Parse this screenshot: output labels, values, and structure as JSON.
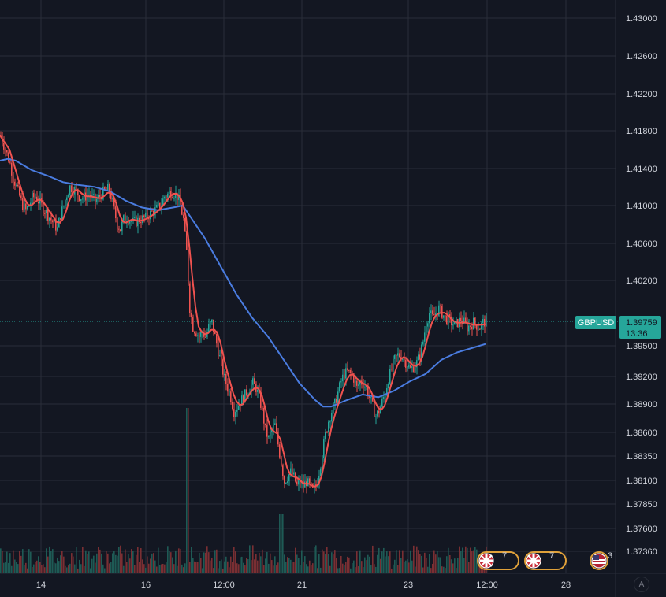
{
  "symbol": "GBPUSD",
  "current_price": "1.39759",
  "countdown": "13:36",
  "auto_scale_label": "A",
  "colors": {
    "background": "#131722",
    "grid": "#2a2e39",
    "bull": "#26a69a",
    "bear": "#ef5350",
    "ma_fast": "#f0524f",
    "ma_slow": "#4a7ce0",
    "price_badge": "#26a69a"
  },
  "events": [
    {
      "flag": "uk-flag-icon",
      "count": "7"
    },
    {
      "flag": "uk-flag-icon",
      "count": "7"
    },
    {
      "flag": "us-flag-icon",
      "count": "3"
    }
  ],
  "chart_data": {
    "type": "candlestick",
    "y_ticks": [
      "1.43000",
      "1.42600",
      "1.42200",
      "1.41800",
      "1.41400",
      "1.41000",
      "1.40600",
      "1.40200",
      "1.39500",
      "1.39200",
      "1.38900",
      "1.38600",
      "1.38350",
      "1.38100",
      "1.37850",
      "1.37600",
      "1.37360"
    ],
    "x_ticks": [
      "14",
      "16",
      "12:00",
      "21",
      "23",
      "12:00",
      "28"
    ],
    "close_series": [
      [
        0,
        1.4175
      ],
      [
        4,
        1.4165
      ],
      [
        8,
        1.4155
      ],
      [
        12,
        1.4145
      ],
      [
        16,
        1.413
      ],
      [
        20,
        1.412
      ],
      [
        24,
        1.411
      ],
      [
        28,
        1.41
      ],
      [
        32,
        1.4095
      ],
      [
        36,
        1.41
      ],
      [
        40,
        1.4108
      ],
      [
        44,
        1.411
      ],
      [
        48,
        1.4105
      ],
      [
        52,
        1.41
      ],
      [
        56,
        1.4095
      ],
      [
        60,
        1.409
      ],
      [
        64,
        1.4085
      ],
      [
        68,
        1.408
      ],
      [
        72,
        1.4075
      ],
      [
        76,
        1.409
      ],
      [
        80,
        1.41
      ],
      [
        84,
        1.4112
      ],
      [
        88,
        1.412
      ],
      [
        92,
        1.4118
      ],
      [
        96,
        1.4115
      ],
      [
        100,
        1.411
      ],
      [
        104,
        1.4108
      ],
      [
        108,
        1.411
      ],
      [
        112,
        1.4112
      ],
      [
        116,
        1.4108
      ],
      [
        120,
        1.4105
      ],
      [
        124,
        1.4108
      ],
      [
        128,
        1.4112
      ],
      [
        132,
        1.4115
      ],
      [
        136,
        1.4118
      ],
      [
        140,
        1.411
      ],
      [
        144,
        1.4095
      ],
      [
        148,
        1.408
      ],
      [
        152,
        1.4075
      ],
      [
        156,
        1.4085
      ],
      [
        160,
        1.4088
      ],
      [
        164,
        1.4085
      ],
      [
        168,
        1.4082
      ],
      [
        172,
        1.4083
      ],
      [
        176,
        1.4085
      ],
      [
        180,
        1.4086
      ],
      [
        184,
        1.4087
      ],
      [
        188,
        1.409
      ],
      [
        192,
        1.4093
      ],
      [
        196,
        1.4095
      ],
      [
        200,
        1.4098
      ],
      [
        204,
        1.4102
      ],
      [
        208,
        1.411
      ],
      [
        212,
        1.4112
      ],
      [
        216,
        1.4115
      ],
      [
        220,
        1.4113
      ],
      [
        224,
        1.411
      ],
      [
        228,
        1.41
      ],
      [
        232,
        1.4085
      ],
      [
        236,
        1.405
      ],
      [
        240,
        1.399
      ],
      [
        244,
        1.397
      ],
      [
        248,
        1.3965
      ],
      [
        252,
        1.396
      ],
      [
        256,
        1.3965
      ],
      [
        260,
        1.396
      ],
      [
        264,
        1.397
      ],
      [
        268,
        1.3975
      ],
      [
        272,
        1.396
      ],
      [
        276,
        1.3945
      ],
      [
        280,
        1.393
      ],
      [
        284,
        1.3915
      ],
      [
        288,
        1.3905
      ],
      [
        292,
        1.3895
      ],
      [
        296,
        1.388
      ],
      [
        300,
        1.3885
      ],
      [
        304,
        1.389
      ],
      [
        308,
        1.3895
      ],
      [
        312,
        1.39
      ],
      [
        316,
        1.3905
      ],
      [
        320,
        1.391
      ],
      [
        324,
        1.3905
      ],
      [
        328,
        1.3895
      ],
      [
        332,
        1.388
      ],
      [
        336,
        1.386
      ],
      [
        340,
        1.385
      ],
      [
        344,
        1.386
      ],
      [
        348,
        1.3865
      ],
      [
        352,
        1.3845
      ],
      [
        356,
        1.3825
      ],
      [
        360,
        1.3805
      ],
      [
        364,
        1.381
      ],
      [
        368,
        1.3815
      ],
      [
        372,
        1.381
      ],
      [
        376,
        1.38
      ],
      [
        380,
        1.3805
      ],
      [
        384,
        1.38
      ],
      [
        388,
        1.3805
      ],
      [
        392,
        1.38
      ],
      [
        396,
        1.3795
      ],
      [
        400,
        1.38
      ],
      [
        404,
        1.3815
      ],
      [
        408,
        1.3835
      ],
      [
        412,
        1.3855
      ],
      [
        416,
        1.387
      ],
      [
        420,
        1.388
      ],
      [
        424,
        1.3888
      ],
      [
        428,
        1.39
      ],
      [
        432,
        1.3912
      ],
      [
        436,
        1.392
      ],
      [
        440,
        1.3922
      ],
      [
        444,
        1.392
      ],
      [
        448,
        1.3915
      ],
      [
        452,
        1.3905
      ],
      [
        456,
        1.3912
      ],
      [
        460,
        1.391
      ],
      [
        464,
        1.3905
      ],
      [
        468,
        1.3895
      ],
      [
        472,
        1.3885
      ],
      [
        476,
        1.3875
      ],
      [
        480,
        1.388
      ],
      [
        484,
        1.389
      ],
      [
        488,
        1.39
      ],
      [
        492,
        1.3915
      ],
      [
        496,
        1.3925
      ],
      [
        500,
        1.3935
      ],
      [
        504,
        1.394
      ],
      [
        508,
        1.394
      ],
      [
        512,
        1.3935
      ],
      [
        516,
        1.393
      ],
      [
        520,
        1.3925
      ],
      [
        524,
        1.3928
      ],
      [
        528,
        1.3932
      ],
      [
        532,
        1.394
      ],
      [
        536,
        1.3955
      ],
      [
        540,
        1.3975
      ],
      [
        544,
        1.3985
      ],
      [
        548,
        1.398
      ],
      [
        552,
        1.3985
      ],
      [
        556,
        1.399
      ],
      [
        560,
        1.3985
      ],
      [
        564,
        1.398
      ],
      [
        568,
        1.3978
      ],
      [
        572,
        1.3975
      ],
      [
        576,
        1.3972
      ],
      [
        580,
        1.3975
      ],
      [
        584,
        1.3978
      ],
      [
        588,
        1.3975
      ],
      [
        592,
        1.397
      ],
      [
        596,
        1.3972
      ],
      [
        600,
        1.3975
      ],
      [
        604,
        1.3972
      ],
      [
        608,
        1.397
      ],
      [
        612,
        1.3975
      ],
      [
        616,
        1.3976
      ]
    ],
    "slow_ma": [
      [
        0,
        1.4148
      ],
      [
        10,
        1.415
      ],
      [
        20,
        1.4148
      ],
      [
        40,
        1.4138
      ],
      [
        60,
        1.4132
      ],
      [
        80,
        1.4125
      ],
      [
        100,
        1.4122
      ],
      [
        120,
        1.412
      ],
      [
        140,
        1.4115
      ],
      [
        160,
        1.4105
      ],
      [
        180,
        1.4098
      ],
      [
        200,
        1.4095
      ],
      [
        220,
        1.4098
      ],
      [
        232,
        1.41
      ],
      [
        240,
        1.409
      ],
      [
        260,
        1.4065
      ],
      [
        280,
        1.4035
      ],
      [
        300,
        1.4005
      ],
      [
        320,
        1.398
      ],
      [
        340,
        1.396
      ],
      [
        360,
        1.3935
      ],
      [
        380,
        1.391
      ],
      [
        400,
        1.3892
      ],
      [
        410,
        1.3885
      ],
      [
        420,
        1.3885
      ],
      [
        440,
        1.3892
      ],
      [
        460,
        1.3898
      ],
      [
        480,
        1.3895
      ],
      [
        500,
        1.3902
      ],
      [
        520,
        1.3912
      ],
      [
        540,
        1.392
      ],
      [
        560,
        1.3935
      ],
      [
        580,
        1.3943
      ],
      [
        600,
        1.3948
      ],
      [
        616,
        1.3952
      ]
    ],
    "volume_spikes": [
      [
        236,
        0.95
      ],
      [
        356,
        0.38
      ],
      [
        270,
        0.1
      ]
    ]
  }
}
